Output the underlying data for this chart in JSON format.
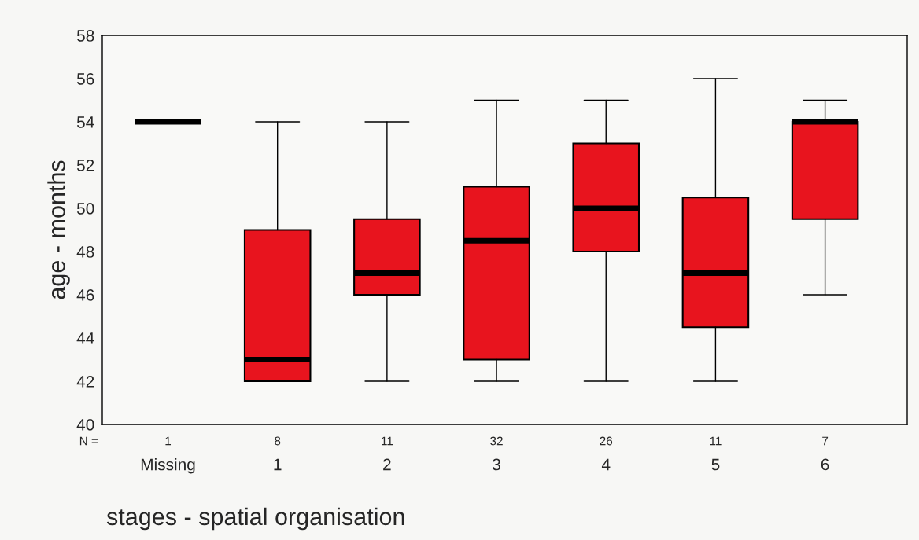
{
  "chart_data": {
    "type": "box",
    "xlabel": "stages - spatial organisation",
    "ylabel": "age - months",
    "categories": [
      "Missing",
      "1",
      "2",
      "3",
      "4",
      "5",
      "6"
    ],
    "boxes": [
      {
        "low": 54,
        "q1": 54,
        "median": 54,
        "q3": 54,
        "high": 54
      },
      {
        "low": 42,
        "q1": 42,
        "median": 43,
        "q3": 49,
        "high": 54
      },
      {
        "low": 42,
        "q1": 46,
        "median": 47,
        "q3": 49.5,
        "high": 54
      },
      {
        "low": 42,
        "q1": 43,
        "median": 48.5,
        "q3": 51,
        "high": 55
      },
      {
        "low": 42,
        "q1": 48,
        "median": 50,
        "q3": 53,
        "high": 55
      },
      {
        "low": 42,
        "q1": 44.5,
        "median": 47,
        "q3": 50.5,
        "high": 56
      },
      {
        "low": 46,
        "q1": 49.5,
        "median": 54,
        "q3": 54,
        "high": 55
      }
    ],
    "colors": [
      "#000000",
      "#e8141e",
      "#e8141e",
      "#e8141e",
      "#e8141e",
      "#e8141e",
      "#e8141e"
    ],
    "ylim": [
      40,
      58
    ],
    "yticks": [
      40,
      42,
      44,
      46,
      48,
      50,
      52,
      54,
      56,
      58
    ],
    "grid": false,
    "legend": false,
    "annotations": [
      "N =",
      "1",
      "8",
      "11",
      "32",
      "26",
      "11",
      "7"
    ]
  }
}
